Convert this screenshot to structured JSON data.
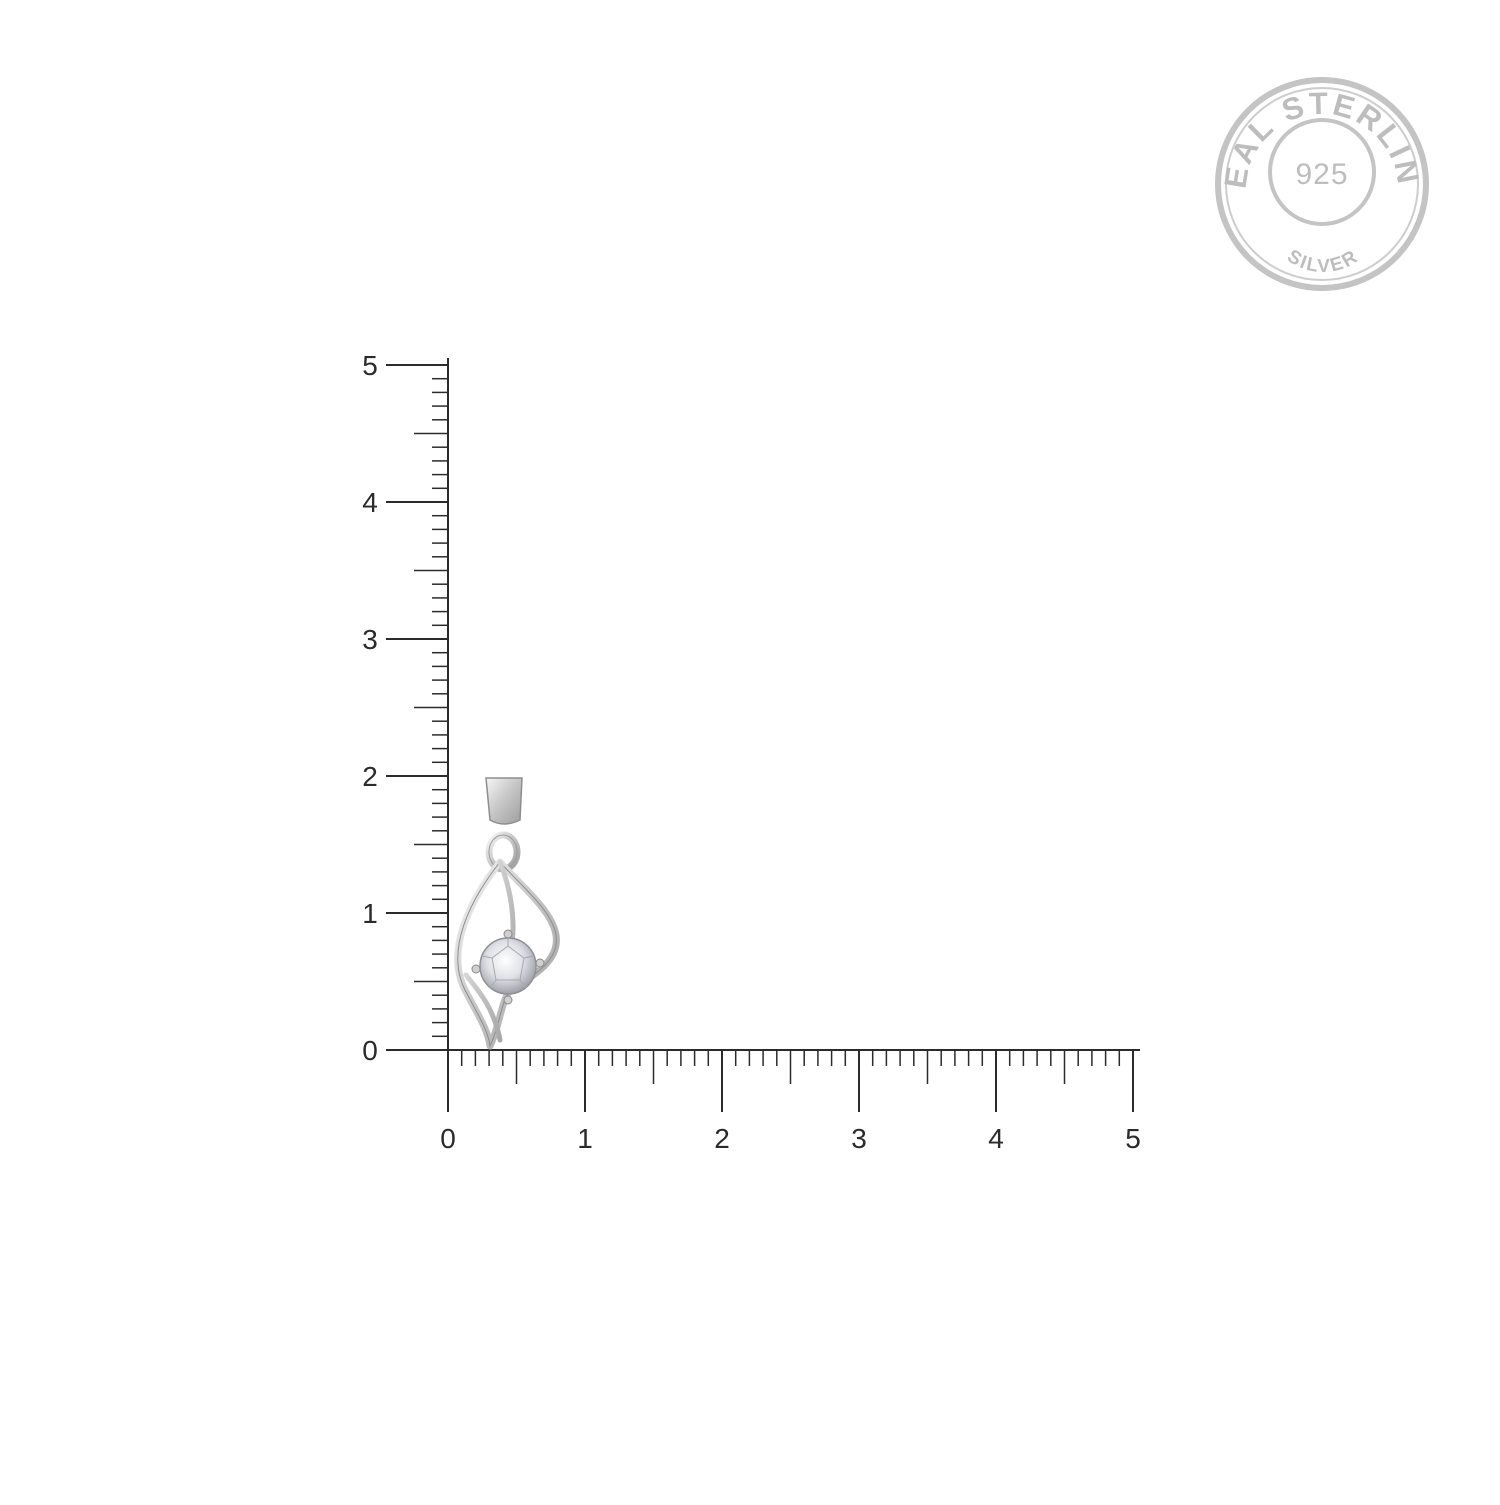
{
  "seal": {
    "top_text": "REAL STERLING",
    "center_text": "925",
    "bottom_text": "SILVER",
    "color": "#b9b9b9"
  },
  "ruler": {
    "units_per_major": 10,
    "y_labels": [
      "0",
      "1",
      "2",
      "3",
      "4",
      "5"
    ],
    "x_labels": [
      "0",
      "1",
      "2",
      "3",
      "4",
      "5"
    ],
    "color": "#2b2b2b"
  },
  "product": {
    "type": "pendant",
    "height_in_ruler_units": 2.0,
    "width_in_ruler_units": 0.8,
    "metal_color": "#d8d8d8",
    "stone_color": "#e9eaee"
  }
}
